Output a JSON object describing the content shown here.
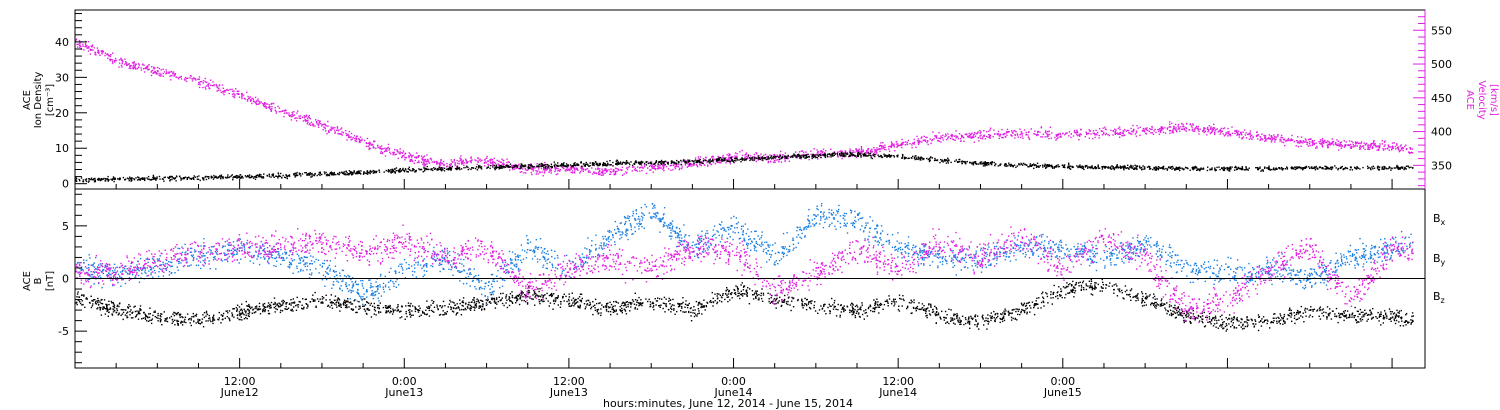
{
  "colors": {
    "density": "#000000",
    "velocity": "#e020e0",
    "bx": "#000000",
    "by": "#1a7fe0",
    "bz": "#e020e0",
    "axis": "#000000"
  },
  "chart_data": [
    {
      "type": "scatter",
      "panel": "plasma",
      "left_axis": {
        "label_lines": [
          "ACE",
          "Ion Density",
          "[cm⁻³]"
        ],
        "ylim": [
          -1.5,
          49
        ],
        "ticks": [
          "0",
          "10",
          "20",
          "30",
          "40"
        ],
        "tick_values": [
          0,
          10,
          20,
          30,
          40
        ]
      },
      "right_axis": {
        "label_lines": [
          "ACE",
          "Velocity",
          "[km/s]"
        ],
        "ylim": [
          315,
          580
        ],
        "ticks": [
          "350",
          "400",
          "450",
          "500",
          "550"
        ],
        "tick_values": [
          350,
          400,
          450,
          500,
          550
        ]
      },
      "xlim_hours": [
        0,
        98.4
      ],
      "series": [
        {
          "name": "Ion Density",
          "axis": "left",
          "x": [
            0,
            4,
            8,
            12,
            16,
            20,
            24,
            28,
            32,
            36,
            40,
            44,
            48,
            52,
            56,
            60,
            64,
            68,
            72,
            76,
            80,
            84,
            88,
            92,
            96,
            97.5
          ],
          "y": [
            1.3,
            1.5,
            1.8,
            2.1,
            2.6,
            3.2,
            4.0,
            4.6,
            5.0,
            5.5,
            6.0,
            6.3,
            7.0,
            7.8,
            8.5,
            7.8,
            6.5,
            5.5,
            5.0,
            4.8,
            4.5,
            4.4,
            4.5,
            4.6,
            4.6,
            4.7
          ]
        },
        {
          "name": "Velocity",
          "axis": "right",
          "x": [
            0,
            1,
            3,
            6,
            9,
            12,
            15,
            18,
            21,
            24,
            27,
            30,
            33,
            36,
            39,
            42,
            45,
            48,
            51,
            54,
            57,
            60,
            63,
            66,
            69,
            72,
            75,
            78,
            81,
            84,
            87,
            90,
            93,
            96,
            97.5
          ],
          "y": [
            535,
            525,
            505,
            490,
            475,
            455,
            430,
            410,
            385,
            365,
            352,
            358,
            345,
            346,
            342,
            348,
            353,
            363,
            362,
            368,
            370,
            382,
            392,
            395,
            398,
            397,
            400,
            402,
            408,
            400,
            392,
            385,
            382,
            378,
            373
          ]
        }
      ]
    },
    {
      "type": "scatter",
      "panel": "magnetic field",
      "left_axis": {
        "label_lines": [
          "ACE",
          "B",
          "[nT]"
        ],
        "ylim": [
          -8.5,
          8.5
        ],
        "ticks": [
          "-5",
          "0",
          "5"
        ],
        "tick_values": [
          -5,
          0,
          5
        ]
      },
      "xlim_hours": [
        0,
        98.4
      ],
      "series": [
        {
          "name": "Bx",
          "x": [
            0,
            3,
            6,
            9,
            12,
            15,
            18,
            21,
            24,
            27,
            30,
            33,
            36,
            39,
            42,
            45,
            48,
            51,
            54,
            57,
            60,
            63,
            66,
            69,
            72,
            75,
            78,
            81,
            84,
            87,
            90,
            93,
            96,
            97.5
          ],
          "y": [
            -1.8,
            -3.0,
            -3.6,
            -3.9,
            -3.2,
            -2.5,
            -2.0,
            -2.6,
            -3.0,
            -2.8,
            -2.2,
            -1.5,
            -2.0,
            -2.8,
            -2.0,
            -3.0,
            -1.0,
            -2.0,
            -2.5,
            -3.0,
            -2.0,
            -3.5,
            -4.0,
            -3.0,
            -1.0,
            -0.5,
            -2.0,
            -3.5,
            -4.2,
            -4.0,
            -3.0,
            -3.5,
            -3.5,
            -4.0
          ]
        },
        {
          "name": "By",
          "x": [
            0,
            3,
            6,
            9,
            12,
            15,
            18,
            21,
            24,
            27,
            30,
            33,
            36,
            39,
            42,
            45,
            48,
            51,
            54,
            57,
            60,
            63,
            66,
            69,
            72,
            75,
            78,
            81,
            84,
            87,
            90,
            93,
            96,
            97.5
          ],
          "y": [
            1.2,
            0.5,
            1.2,
            2.2,
            2.8,
            2.2,
            1.0,
            -1.5,
            1.0,
            2.0,
            -1.0,
            3.0,
            1.0,
            4.0,
            6.5,
            3.0,
            5.0,
            2.0,
            6.0,
            5.5,
            3.0,
            2.0,
            2.0,
            3.0,
            3.0,
            2.0,
            3.5,
            1.0,
            0.5,
            1.0,
            0.0,
            2.0,
            3.0,
            3.5
          ]
        },
        {
          "name": "Bz",
          "x": [
            0,
            3,
            6,
            9,
            12,
            15,
            18,
            21,
            24,
            27,
            30,
            33,
            36,
            39,
            42,
            45,
            48,
            51,
            54,
            57,
            60,
            63,
            66,
            69,
            72,
            75,
            78,
            81,
            84,
            87,
            90,
            93,
            96,
            97.5
          ],
          "y": [
            0.8,
            0.5,
            1.8,
            2.5,
            3.0,
            3.0,
            3.5,
            2.5,
            3.5,
            2.0,
            3.0,
            -1.0,
            1.0,
            2.0,
            1.0,
            3.0,
            2.5,
            -1.0,
            0.5,
            3.0,
            1.0,
            3.5,
            2.0,
            4.0,
            1.0,
            4.0,
            2.0,
            -3.0,
            -2.0,
            1.0,
            3.0,
            -2.0,
            3.0,
            2.5
          ]
        }
      ]
    }
  ],
  "x_axis": {
    "ticks": [
      {
        "hours": 12,
        "time": "12:00",
        "date": "June12"
      },
      {
        "hours": 24,
        "time": "0:00",
        "date": "June13"
      },
      {
        "hours": 36,
        "time": "12:00",
        "date": "June13"
      },
      {
        "hours": 48,
        "time": "0:00",
        "date": "June14"
      },
      {
        "hours": 60,
        "time": "12:00",
        "date": "June14"
      },
      {
        "hours": 72,
        "time": "0:00",
        "date": "June15"
      }
    ],
    "title": "hours:minutes, June 12, 2014 - June 15, 2014"
  },
  "legend": {
    "bx": "B",
    "bx_sub": "x",
    "by": "B",
    "by_sub": "y",
    "bz": "B",
    "bz_sub": "z"
  }
}
